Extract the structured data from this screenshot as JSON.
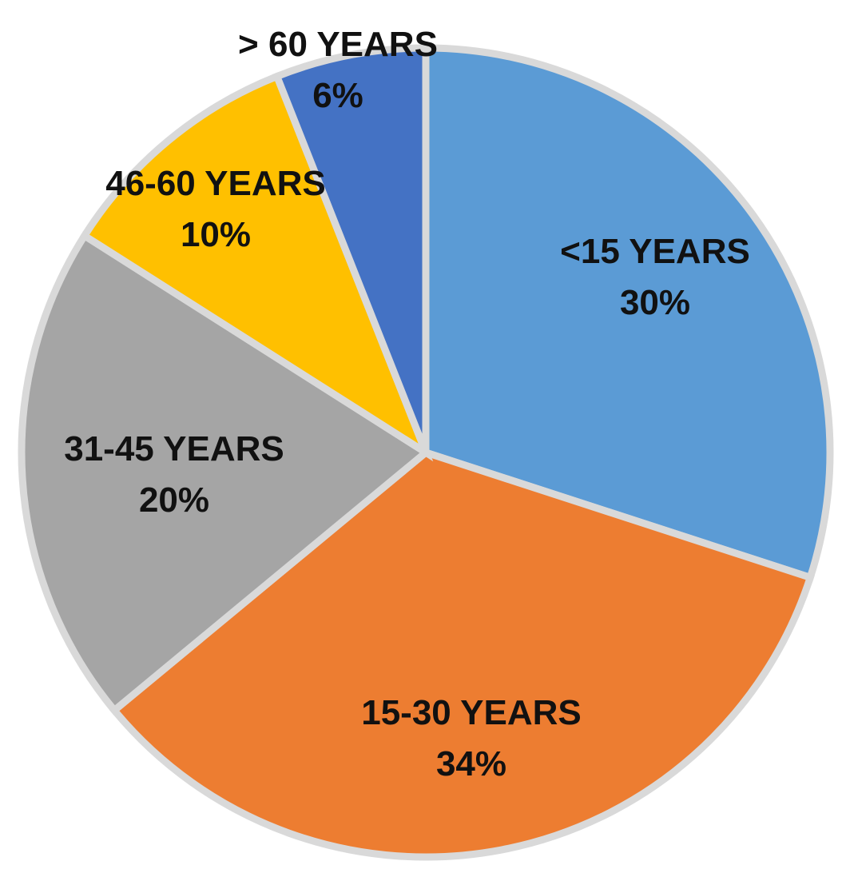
{
  "chart_data": {
    "type": "pie",
    "title": "",
    "categories": [
      "<15 YEARS",
      "15-30 YEARS",
      "31-45 YEARS",
      "46-60 YEARS",
      "> 60 YEARS"
    ],
    "values": [
      30,
      34,
      20,
      10,
      6
    ],
    "value_labels": [
      "30%",
      "34%",
      "20%",
      "10%",
      "6%"
    ],
    "colors": [
      "#5b9bd5",
      "#ed7d31",
      "#a5a5a5",
      "#ffc000",
      "#4472c4"
    ],
    "slice_border_color": "#d9d9d9",
    "legend": "none",
    "start_angle_note": "first slice starts at 12 o'clock, clockwise"
  }
}
